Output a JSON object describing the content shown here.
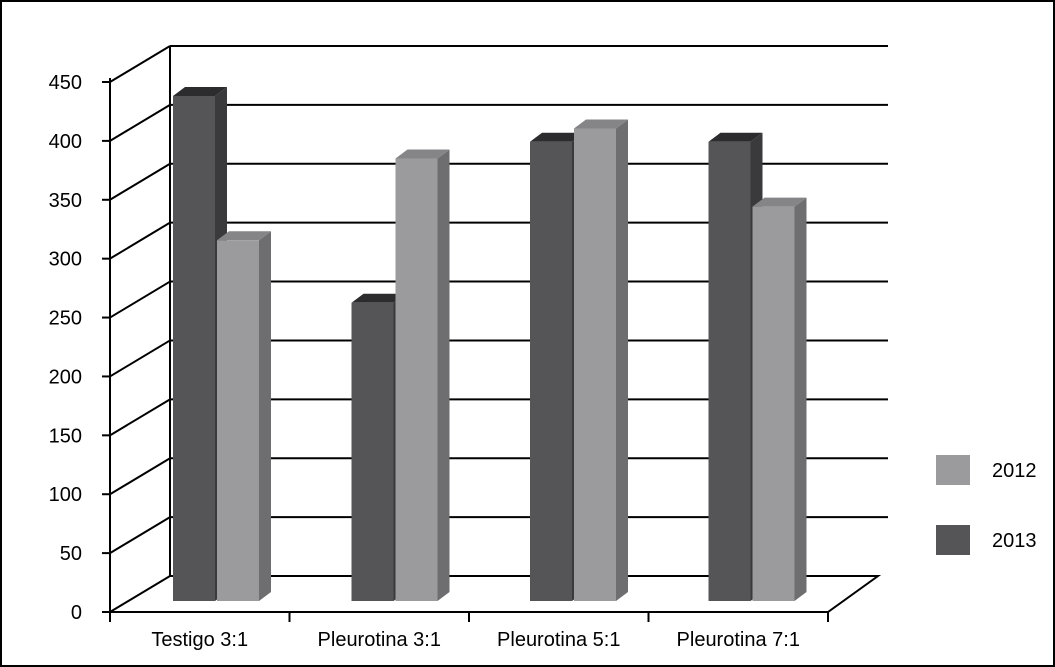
{
  "chart_data": {
    "type": "bar",
    "title": "",
    "xlabel": "",
    "ylabel": "",
    "categories": [
      "Testigo 3:1",
      "Pleurotina 3:1",
      "Pleurotina 5:1",
      "Pleurotina 7:1"
    ],
    "series": [
      {
        "name": "2013",
        "values": [
          420,
          248,
          382,
          382
        ]
      },
      {
        "name": "2012",
        "values": [
          300,
          368,
          393,
          328
        ]
      }
    ],
    "ylim": [
      0,
      450
    ],
    "yticks": [
      0,
      50,
      100,
      150,
      200,
      250,
      300,
      350,
      400,
      450
    ],
    "grid": true,
    "legend_position": "right",
    "colors": {
      "2013": {
        "front": "#555558",
        "side": "#3a3a3c",
        "top": "#2c2c2e"
      },
      "2012": {
        "front": "#9b9b9d",
        "side": "#6e6e70",
        "top": "#858587"
      }
    }
  }
}
